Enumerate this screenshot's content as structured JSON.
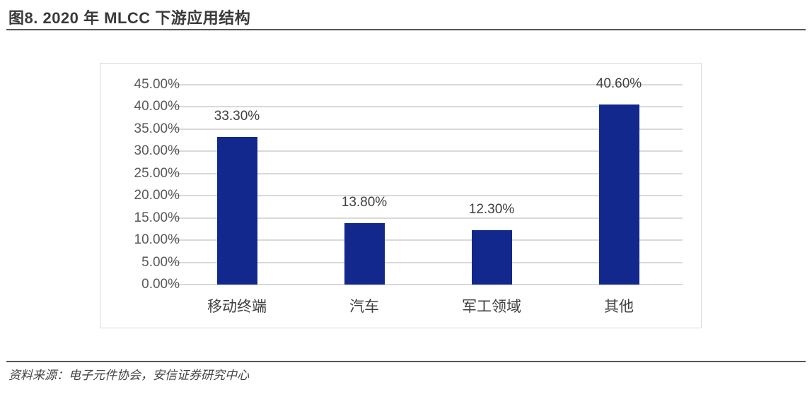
{
  "title": "图8. 2020 年 MLCC 下游应用结构",
  "source": "资料来源：电子元件协会，安信证券研究中心",
  "colors": {
    "bar": "#12288C",
    "grid": "#D9D9D9",
    "text": "#595959"
  },
  "chart_data": {
    "type": "bar",
    "title": "2020 年 MLCC 下游应用结构",
    "categories": [
      "移动终端",
      "汽车",
      "军工领域",
      "其他"
    ],
    "values": [
      33.3,
      13.8,
      12.3,
      40.6
    ],
    "data_labels": [
      "33.30%",
      "13.80%",
      "12.30%",
      "40.60%"
    ],
    "yticks": [
      "0.00%",
      "5.00%",
      "10.00%",
      "15.00%",
      "20.00%",
      "25.00%",
      "30.00%",
      "35.00%",
      "40.00%",
      "45.00%"
    ],
    "xlabel": "",
    "ylabel": "",
    "ylim": [
      0,
      45
    ],
    "grid": true,
    "legend": "none"
  }
}
